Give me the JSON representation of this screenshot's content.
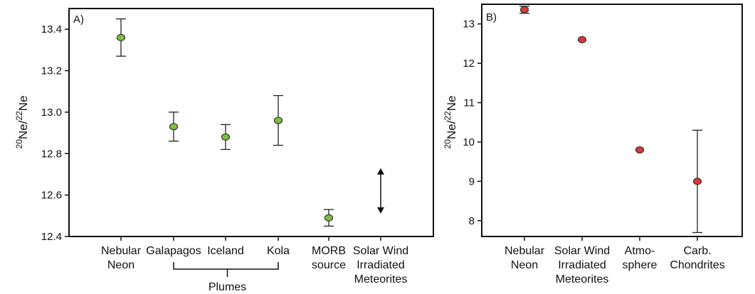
{
  "chart_data": [
    {
      "type": "scatter",
      "panel_label": "A)",
      "ylabel": {
        "pre_sup": "20",
        "main": "Ne/",
        "mid_sup": "22",
        "tail": "Ne"
      },
      "ylim": [
        12.4,
        13.5
      ],
      "yticks": [
        "12.4",
        "12.6",
        "12.8",
        "13.0",
        "13.2",
        "13.4"
      ],
      "point_color": "#7dbf3c",
      "categories": [
        {
          "lines": [
            "Nebular",
            "Neon"
          ]
        },
        {
          "lines": [
            "Galapagos"
          ]
        },
        {
          "lines": [
            "Iceland"
          ]
        },
        {
          "lines": [
            "Kola"
          ]
        },
        {
          "lines": [
            "MORB",
            "source"
          ]
        },
        {
          "lines": [
            "Solar Wind",
            "Irradiated",
            "Meteorites"
          ]
        }
      ],
      "points": [
        {
          "category": "Nebular Neon",
          "value": 13.36,
          "err_low": 13.27,
          "err_high": 13.45
        },
        {
          "category": "Galapagos",
          "value": 12.93,
          "err_low": 12.86,
          "err_high": 13.0
        },
        {
          "category": "Iceland",
          "value": 12.88,
          "err_low": 12.82,
          "err_high": 12.94
        },
        {
          "category": "Kola",
          "value": 12.96,
          "err_low": 12.84,
          "err_high": 13.08
        },
        {
          "category": "MORB source",
          "value": 12.49,
          "err_low": 12.45,
          "err_high": 12.53
        }
      ],
      "range_arrow": {
        "category": "Solar Wind Irradiated Meteorites",
        "low": 12.51,
        "high": 12.73
      },
      "group_bracket": {
        "label": "Plumes",
        "from": "Galapagos",
        "to": "Kola"
      }
    },
    {
      "type": "scatter",
      "panel_label": "B)",
      "ylabel": {
        "pre_sup": "20",
        "main": "Ne/",
        "mid_sup": "22",
        "tail": "Ne"
      },
      "ylim": [
        7.6,
        13.5
      ],
      "yticks": [
        "8",
        "9",
        "10",
        "11",
        "12",
        "13"
      ],
      "point_color": "#d83a35",
      "categories": [
        {
          "lines": [
            "Nebular",
            "Neon"
          ]
        },
        {
          "lines": [
            "Solar Wind",
            "Irradiated",
            "Meteorites"
          ]
        },
        {
          "lines": [
            "Atmo-",
            "sphere"
          ]
        },
        {
          "lines": [
            "Carb.",
            "Chondrites"
          ]
        }
      ],
      "points": [
        {
          "category": "Nebular Neon",
          "value": 13.36,
          "err_low": 13.27,
          "err_high": 13.45
        },
        {
          "category": "Solar Wind Irradiated Meteorites",
          "value": 12.6,
          "err_low": null,
          "err_high": null
        },
        {
          "category": "Atmosphere",
          "value": 9.8,
          "err_low": null,
          "err_high": null
        },
        {
          "category": "Carb. Chondrites",
          "value": 9.0,
          "err_low": 7.7,
          "err_high": 10.3
        }
      ]
    }
  ]
}
